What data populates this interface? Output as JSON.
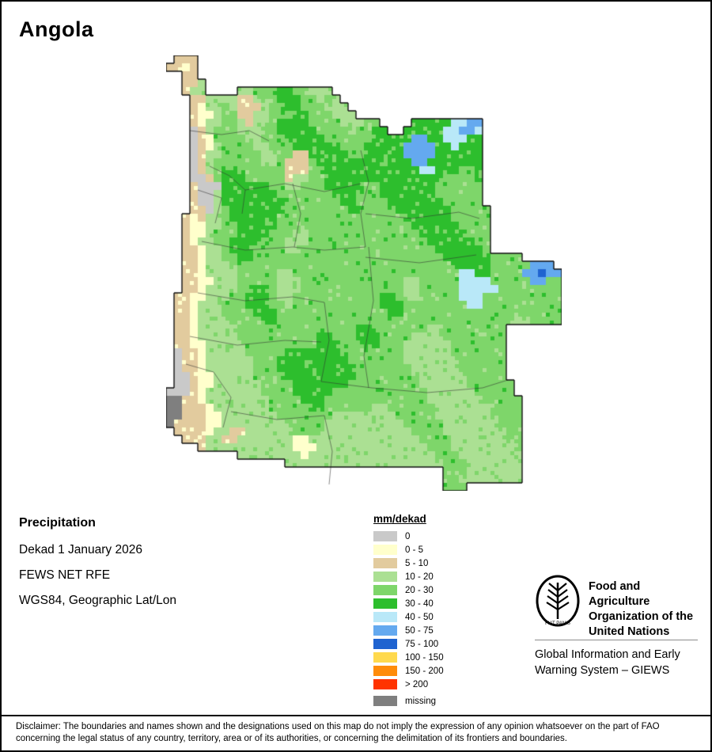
{
  "title": "Angola",
  "info": {
    "heading": "Precipitation",
    "lines": [
      "Dekad 1 January 2026",
      "FEWS NET RFE",
      "WGS84, Geographic Lat/Lon"
    ]
  },
  "legend": {
    "header": "mm/dekad",
    "items": [
      {
        "label": "0",
        "color": "#c9c9c9"
      },
      {
        "label": "0 - 5",
        "color": "#ffffcc"
      },
      {
        "label": "5 - 10",
        "color": "#e2cb9e"
      },
      {
        "label": "10 - 20",
        "color": "#abe093"
      },
      {
        "label": "20 - 30",
        "color": "#7ed66a"
      },
      {
        "label": "30 - 40",
        "color": "#2dbe2d"
      },
      {
        "label": "40 - 50",
        "color": "#b9e8f8"
      },
      {
        "label": "50 - 75",
        "color": "#64a9ef"
      },
      {
        "label": "75 - 100",
        "color": "#1f63d0"
      },
      {
        "label": "100 - 150",
        "color": "#ffd94d"
      },
      {
        "label": "150 - 200",
        "color": "#ff8c0a"
      },
      {
        "label": "> 200",
        "color": "#ff3300"
      },
      {
        "label": "missing",
        "color": "#7f7f7f",
        "gap_before": true
      }
    ]
  },
  "fao": {
    "org_lines": [
      "Food and Agriculture",
      "Organization of the",
      "United Nations"
    ],
    "giews_lines": [
      "Global Information and Early",
      "Warning System – GIEWS"
    ],
    "logo_motto": "FIAT PANIS"
  },
  "disclaimer": [
    "Disclaimer: The boundaries and names shown and the designations used on this map do not imply the expression of any opinion whatsoever on the part of FAO",
    "concerning the legal status of any country, territory, area or of its authorities, or concerning the delimitation of its frontiers and boundaries."
  ],
  "map": {
    "cell_size": 10,
    "palette": {
      "G": "#c9c9c9",
      "y": "#ffffcc",
      "t": "#e2cb9e",
      "l": "#abe093",
      "m": "#7ed66a",
      "d": "#2dbe2d",
      "f": "#b9e8f8",
      "b": "#64a9ef",
      "B": "#1f63d0",
      "M": "#7f7f7f"
    },
    "grid": [
      ".ttt",
      "ttyt",
      "..tt",
      "..ttl",
      "..tll....llmmmddmmlll",
      "...ttllllttlmmdddmmlml",
      "...tyllmltttlmmddmmmlll",
      "...tyylmmttllmmmddmmmlll",
      "...tyllmmltllmddddmmmmlllmm....dddddffbb",
      "...Gtlmmmlllmmdddddmmmmlmmdd..dddddffbbf",
      "...Gtymmmmllmmmdddddmmmmmmdddddbbddfffdd",
      "...Gtylmmmmllmmmddddddmmmdddddbbbbddfddd",
      "...Gtllmmmmmllmmttdddddmmdddddbbbbdddddd",
      "...Gtlmmmmmmllmtttmddddddddmdddbbddddddd",
      "...Gtlmddmmmmmmtttmmddddddddddddffdddmmd",
      "...GGtmdddmmmmmtllmmdddddddddddddddmmmmd",
      "...tGGGddddddmmllmmmdddddmmdddddddmmmmmm",
      "...tGGldddddddmmmmmmmdddmmmdddddddmmmmmm",
      "...tGGlddddddddmmmmmmmddmmmmdddddddmmmmm",
      "...ttGlmdddddddmmmmmmmmddmmmmdddddddmmmmm",
      "..tytllmddddddmmmmmmmmmmmmmmmmddddddmmmmm",
      "..tyyllmmdddddmmmmmmmmmmmmmmmmmddddddmmmm",
      "..tyylmmmddddmmmllmmmmmmmmmmmmmmddddddmmm",
      "..tyllmmddddmmmlllmmmmmmmmmmmmmmmddddddmm",
      "..ttyllmdddmmmmllmmmmmmmmmmmmmmmmmddddddm",
      "..ttyllmmddmmmmmmmmmmmmmmmmmmmmmmmmddddddmmmm",
      "..ttylllmmmmmmmmmmmmmmmmmmmmmmmmmmmmdddddmmmmmbbb",
      "..ttyllllmmmmmllmmmmmmmmmmmmmmmmmmmmmffddmmmmbbBbb",
      "..ttyylllmmmmmlllmmmmmmmmmmmmmllmmmmmffffmmmmmbbmm",
      "..ttyllllmmddmlllmmmmmmmmmmmmmllmmmmmfffffmmmmmmmm",
      ".ttyylllmmdddmllmmmmmmmmmmmddmllmmmmmfffmmmmmmmmmm",
      ".ttylllmmmdddmmlmmmmmmmmmmmdddmmmmmmmmffmmmmmmmmmm",
      ".ttylllmmmmdddmmmmmmmmmmmmmmddmmmmmmmmmmmmmmmmmmmm",
      ".ttyllllmmmmddmmmmmmmmmmmmmmmmmmmmmmmmmmmmmmllmmmm",
      ".ttylllllmmmmmmmmmmmmmmmddmmmmmmmllmmmmmmmm",
      ".ttylllllmmmmmmmmmmddmmmdddmmmmllllmmmmmmmm",
      ".ttyylllllmmmmmmmmmdddmmmddmmmllllllmmmmmmm",
      ".Gttylllllmmmmmdddddddmmmmmmmmllllllmmmmmmm",
      ".Gttyllllllmmmdddddddddmmmmmmmlllllllmmmmmm",
      ".Gttyllllllmmmddddddddddmmmmmmmllllllmmmmmm",
      ".GGtyylllllmmmmdddddddddmmmmmmmmllllllmmmmm",
      ".GGtyyllllllmmmmdddddddmmmmmmmmmllllllmmmmmm",
      "GGGtylllllllmmmmdddddmmmmmmmmmmmmllllllmmmmm",
      "MMttyllllllllmmmmdddmmmmmmmmmmmmmlllllllmmmmm",
      "MMtttylllllllmmmmmddmmmmmmllmmmmmmlllllllmmmm",
      "MMtttyylllllllmmmmmmmllllllllmmmmmlllllllmmmm",
      "Mttttyyllllllllmmmmmllllllllllmmmmmlllllllmmm",
      ".ttttyllttllllllmmmmlllllllllllmmmmllllllllmm",
      "..tttllttlllllllyyllllllllllllllmmmmlllllllmm",
      "....tlllllllllllyyyllllllllllllllmmmllllllllm",
      ".........llllllllyllllllllllllllllmmmllllllll",
      "...............llllllllllllllllllllmmmlllllll",
      "...................................mmmlllllll",
      "...................................mmllllllll",
      "...................................mmm"
    ],
    "province_lines": [
      [
        [
          30,
          95
        ],
        [
          70,
          100
        ],
        [
          105,
          95
        ],
        [
          130,
          108
        ]
      ],
      [
        [
          55,
          140
        ],
        [
          80,
          152
        ],
        [
          100,
          170
        ],
        [
          96,
          200
        ]
      ],
      [
        [
          100,
          170
        ],
        [
          150,
          162
        ],
        [
          200,
          172
        ],
        [
          246,
          162
        ]
      ],
      [
        [
          246,
          120
        ],
        [
          256,
          160
        ],
        [
          246,
          200
        ],
        [
          252,
          242
        ]
      ],
      [
        [
          252,
          200
        ],
        [
          310,
          206
        ],
        [
          370,
          198
        ],
        [
          396,
          206
        ]
      ],
      [
        [
          252,
          255
        ],
        [
          320,
          262
        ],
        [
          392,
          252
        ]
      ],
      [
        [
          160,
          162
        ],
        [
          170,
          200
        ],
        [
          162,
          242
        ]
      ],
      [
        [
          45,
          235
        ],
        [
          100,
          246
        ],
        [
          160,
          242
        ],
        [
          200,
          246
        ],
        [
          252,
          242
        ]
      ],
      [
        [
          40,
          300
        ],
        [
          100,
          310
        ],
        [
          160,
          305
        ],
        [
          200,
          312
        ]
      ],
      [
        [
          200,
          312
        ],
        [
          206,
          360
        ],
        [
          196,
          412
        ]
      ],
      [
        [
          256,
          242
        ],
        [
          262,
          310
        ],
        [
          250,
          380
        ],
        [
          256,
          420
        ]
      ],
      [
        [
          30,
          355
        ],
        [
          90,
          366
        ],
        [
          150,
          360
        ],
        [
          196,
          362
        ]
      ],
      [
        [
          25,
          390
        ],
        [
          60,
          400
        ],
        [
          82,
          432
        ],
        [
          72,
          470
        ]
      ],
      [
        [
          82,
          450
        ],
        [
          140,
          460
        ],
        [
          200,
          455
        ]
      ],
      [
        [
          200,
          455
        ],
        [
          210,
          500
        ],
        [
          206,
          542
        ]
      ],
      [
        [
          196,
          412
        ],
        [
          260,
          420
        ],
        [
          330,
          426
        ],
        [
          400,
          420
        ],
        [
          432,
          410
        ]
      ],
      [
        [
          40,
          170
        ],
        [
          70,
          180
        ],
        [
          62,
          212
        ]
      ]
    ]
  }
}
